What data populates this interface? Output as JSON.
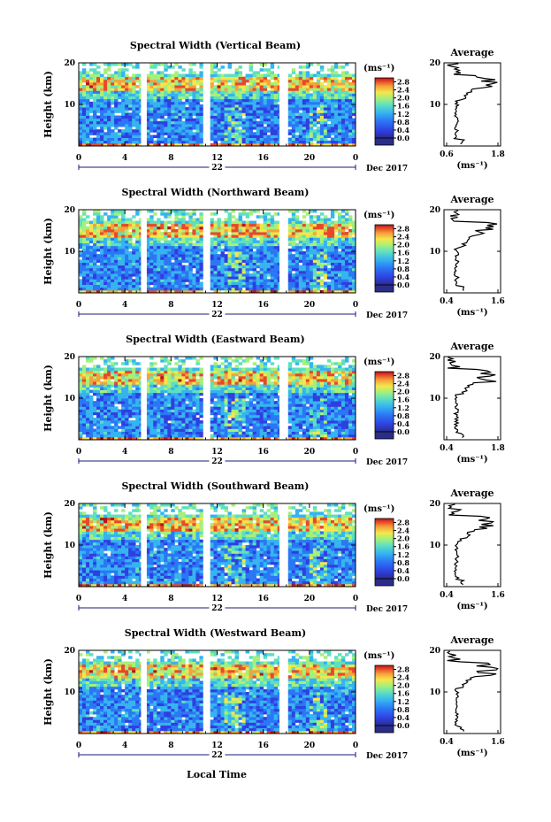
{
  "chart_data": [
    {
      "type": "heatmap",
      "title": "Spectral Width (Vertical Beam)",
      "ylabel": "Height (km)",
      "xticks": [
        "0",
        "4",
        "8",
        "12",
        "16",
        "20",
        "0"
      ],
      "yticks": [
        "20",
        "10"
      ],
      "date_day": "22",
      "date_label": "Dec 2017",
      "xlim": [
        0,
        24
      ],
      "ylim": [
        0,
        20
      ],
      "colorbar": {
        "unit": "(ms⁻¹)",
        "ticks": [
          "2.8",
          "2.4",
          "2.0",
          "1.6",
          "1.2",
          "0.8",
          "0.4",
          "0.0"
        ],
        "range": [
          0,
          3.0
        ]
      },
      "profile": {
        "title": "Average",
        "xlabel": "(ms⁻¹)",
        "xticks": [
          "0.6",
          "1.8"
        ],
        "yticks": [
          "20",
          "10"
        ],
        "xlim": [
          0.6,
          1.8
        ],
        "ylim": [
          0,
          20
        ]
      }
    },
    {
      "type": "heatmap",
      "title": "Spectral Width (Northward Beam)",
      "ylabel": "Height (km)",
      "xticks": [
        "0",
        "4",
        "8",
        "12",
        "16",
        "20",
        "0"
      ],
      "yticks": [
        "20",
        "10"
      ],
      "date_day": "22",
      "date_label": "Dec 2017",
      "xlim": [
        0,
        24
      ],
      "ylim": [
        0,
        20
      ],
      "colorbar": {
        "unit": "(ms⁻¹)",
        "ticks": [
          "2.8",
          "2.4",
          "2.0",
          "1.6",
          "1.2",
          "0.8",
          "0.4",
          "0.0"
        ],
        "range": [
          0,
          3.0
        ]
      },
      "profile": {
        "title": "Average",
        "xlabel": "(ms⁻¹)",
        "xticks": [
          "0.4",
          "1.6"
        ],
        "yticks": [
          "20",
          "10"
        ],
        "xlim": [
          0.4,
          1.6
        ],
        "ylim": [
          0,
          20
        ]
      }
    },
    {
      "type": "heatmap",
      "title": "Spectral Width (Eastward Beam)",
      "ylabel": "Height (km)",
      "xticks": [
        "0",
        "4",
        "8",
        "12",
        "16",
        "20",
        "0"
      ],
      "yticks": [
        "20",
        "10"
      ],
      "date_day": "22",
      "date_label": "Dec 2017",
      "xlim": [
        0,
        24
      ],
      "ylim": [
        0,
        20
      ],
      "colorbar": {
        "unit": "(ms⁻¹)",
        "ticks": [
          "2.8",
          "2.4",
          "2.0",
          "1.6",
          "1.2",
          "0.8",
          "0.4",
          "0.0"
        ],
        "range": [
          0,
          3.0
        ]
      },
      "profile": {
        "title": "Average",
        "xlabel": "(ms⁻¹)",
        "xticks": [
          "0.4",
          "1.8"
        ],
        "yticks": [
          "20",
          "10"
        ],
        "xlim": [
          0.4,
          1.8
        ],
        "ylim": [
          0,
          20
        ]
      }
    },
    {
      "type": "heatmap",
      "title": "Spectral Width (Southward Beam)",
      "ylabel": "Height (km)",
      "xticks": [
        "0",
        "4",
        "8",
        "12",
        "16",
        "20",
        "0"
      ],
      "yticks": [
        "20",
        "10"
      ],
      "date_day": "22",
      "date_label": "Dec 2017",
      "xlim": [
        0,
        24
      ],
      "ylim": [
        0,
        20
      ],
      "colorbar": {
        "unit": "(ms⁻¹)",
        "ticks": [
          "2.8",
          "2.4",
          "2.0",
          "1.6",
          "1.2",
          "0.8",
          "0.4",
          "0.0"
        ],
        "range": [
          0,
          3.0
        ]
      },
      "profile": {
        "title": "Average",
        "xlabel": "(ms⁻¹)",
        "xticks": [
          "0.4",
          "1.6"
        ],
        "yticks": [
          "20",
          "10"
        ],
        "xlim": [
          0.4,
          1.6
        ],
        "ylim": [
          0,
          20
        ]
      }
    },
    {
      "type": "heatmap",
      "title": "Spectral Width (Westward Beam)",
      "ylabel": "Height (km)",
      "xticks": [
        "0",
        "4",
        "8",
        "12",
        "16",
        "20",
        "0"
      ],
      "yticks": [
        "20",
        "10"
      ],
      "date_day": "22",
      "date_label": "Dec 2017",
      "xlim": [
        0,
        24
      ],
      "ylim": [
        0,
        20
      ],
      "colorbar": {
        "unit": "(ms⁻¹)",
        "ticks": [
          "2.8",
          "2.4",
          "2.0",
          "1.6",
          "1.2",
          "0.8",
          "0.4",
          "0.0"
        ],
        "range": [
          0,
          3.0
        ]
      },
      "profile": {
        "title": "Average",
        "xlabel": "(ms⁻¹)",
        "xticks": [
          "0.4",
          "1.6"
        ],
        "yticks": [
          "20",
          "10"
        ],
        "xlim": [
          0.4,
          1.6
        ],
        "ylim": [
          0,
          20
        ]
      }
    }
  ],
  "bottom_xlabel": "Local Time",
  "data_gaps_hours": [
    [
      5.4,
      5.9
    ],
    [
      10.8,
      11.4
    ],
    [
      17.4,
      18.0
    ]
  ],
  "colors": {
    "background": "#ffffff",
    "axis": "#000000",
    "no_data": "#ffffff",
    "colormap": [
      "#2a2d8a",
      "#2f3fe0",
      "#2b77f5",
      "#36b4f0",
      "#5ee0c0",
      "#a6f07a",
      "#f5e64a",
      "#f5a23a",
      "#e8482a",
      "#b01818"
    ]
  }
}
